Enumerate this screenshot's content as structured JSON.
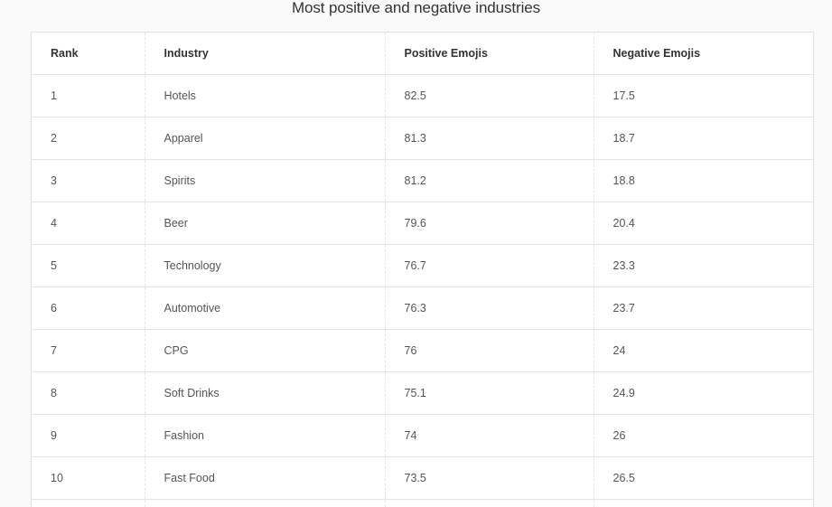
{
  "title": "Most positive and negative industries",
  "table": {
    "headers": {
      "rank": "Rank",
      "industry": "Industry",
      "positive": "Positive Emojis",
      "negative": "Negative Emojis"
    },
    "rows": [
      {
        "rank": "1",
        "industry": "Hotels",
        "positive": "82.5",
        "negative": "17.5"
      },
      {
        "rank": "2",
        "industry": "Apparel",
        "positive": "81.3",
        "negative": "18.7"
      },
      {
        "rank": "3",
        "industry": "Spirits",
        "positive": "81.2",
        "negative": "18.8"
      },
      {
        "rank": "4",
        "industry": "Beer",
        "positive": "79.6",
        "negative": "20.4"
      },
      {
        "rank": "5",
        "industry": "Technology",
        "positive": "76.7",
        "negative": "23.3"
      },
      {
        "rank": "6",
        "industry": "Automotive",
        "positive": "76.3",
        "negative": "23.7"
      },
      {
        "rank": "7",
        "industry": "CPG",
        "positive": "76",
        "negative": "24"
      },
      {
        "rank": "8",
        "industry": "Soft Drinks",
        "positive": "75.1",
        "negative": "24.9"
      },
      {
        "rank": "9",
        "industry": "Fashion",
        "positive": "74",
        "negative": "26"
      },
      {
        "rank": "10",
        "industry": "Fast Food",
        "positive": "73.5",
        "negative": "26.5"
      }
    ]
  }
}
